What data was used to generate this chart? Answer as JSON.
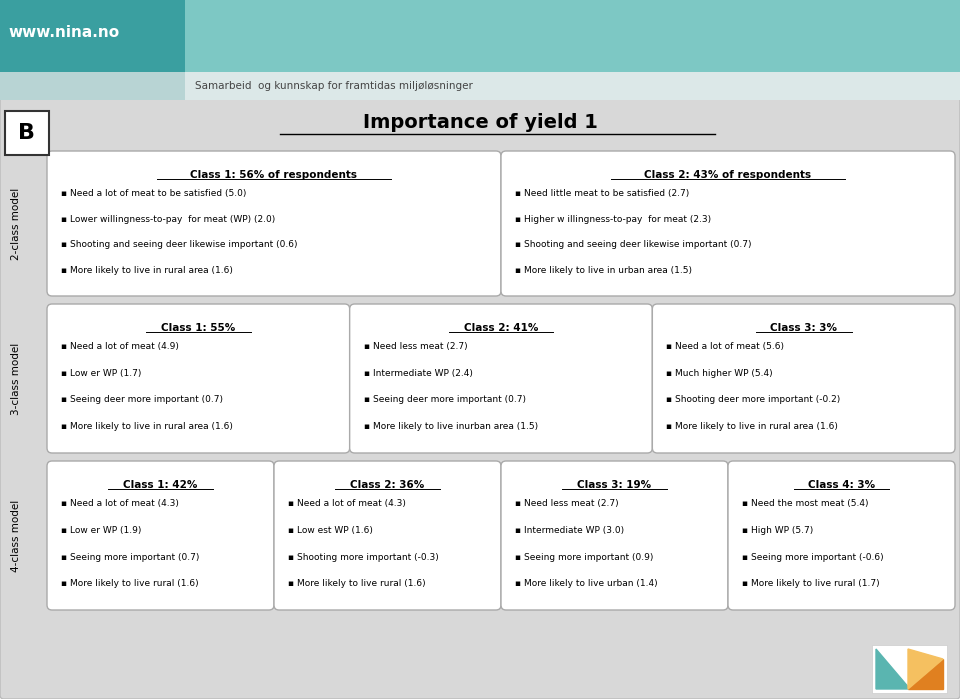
{
  "title": "Importance of yield 1",
  "label_B": "B",
  "header_dark_color": "#3a9fa0",
  "header_light_color": "#7dc8c4",
  "header_text_color": "#ffffff",
  "subheader_bg_left": "#b8d4d4",
  "subheader_bg_right": "#dce8e8",
  "subheader_text": "Samarbeid  og kunnskap for framtidas miljøløsninger",
  "outer_bg": "#d8d8d8",
  "box_bg": "#ffffff",
  "box_border": "#aaaaaa",
  "url": "www.nina.no",
  "rows": [
    {
      "label": "2-class model",
      "boxes": [
        {
          "title": "Class 1: 56% of respondents",
          "lines": [
            "Need a lot of meat to be satisfied (5.0)",
            "Lower willingness-to-pay  for meat (WP) (2.0)",
            "Shooting and seeing deer likewise important (0.6)",
            "More likely to live in rural area (1.6)"
          ]
        },
        {
          "title": "Class 2: 43% of respondents",
          "lines": [
            "Need little meat to be satisfied (2.7)",
            "Higher w illingness-to-pay  for meat (2.3)",
            "Shooting and seeing deer likewise important (0.7)",
            "More likely to live in urban area (1.5)"
          ]
        }
      ]
    },
    {
      "label": "3-class model",
      "boxes": [
        {
          "title": "Class 1: 55%",
          "lines": [
            "Need a lot of meat (4.9)",
            "Low er WP (1.7)",
            "Seeing deer more important (0.7)",
            "More likely to live in rural area (1.6)"
          ]
        },
        {
          "title": "Class 2: 41%",
          "lines": [
            "Need less meat (2.7)",
            "Intermediate WP (2.4)",
            "Seeing deer more important (0.7)",
            "More likely to live inurban area (1.5)"
          ]
        },
        {
          "title": "Class 3: 3%",
          "lines": [
            "Need a lot of meat (5.6)",
            "Much higher WP (5.4)",
            "Shooting deer more important (-0.2)",
            "More likely to live in rural area (1.6)"
          ]
        }
      ]
    },
    {
      "label": "4-class model",
      "boxes": [
        {
          "title": "Class 1: 42%",
          "lines": [
            "Need a lot of meat (4.3)",
            "Low er WP (1.9)",
            "Seeing more important (0.7)",
            "More likely to live rural (1.6)"
          ]
        },
        {
          "title": "Class 2: 36%",
          "lines": [
            "Need a lot of meat (4.3)",
            "Low est WP (1.6)",
            "Shooting more important (-0.3)",
            "More likely to live rural (1.6)"
          ]
        },
        {
          "title": "Class 3: 19%",
          "lines": [
            "Need less meat (2.7)",
            "Intermediate WP (3.0)",
            "Seeing more important (0.9)",
            "More likely to live urban (1.4)"
          ]
        },
        {
          "title": "Class 4: 3%",
          "lines": [
            "Need the most meat (5.4)",
            "High WP (5.7)",
            "Seeing more important (-0.6)",
            "More likely to live rural (1.7)"
          ]
        }
      ]
    }
  ],
  "logo_teal": "#5ab5b0",
  "logo_orange": "#e08020",
  "logo_yellow": "#f5c060"
}
